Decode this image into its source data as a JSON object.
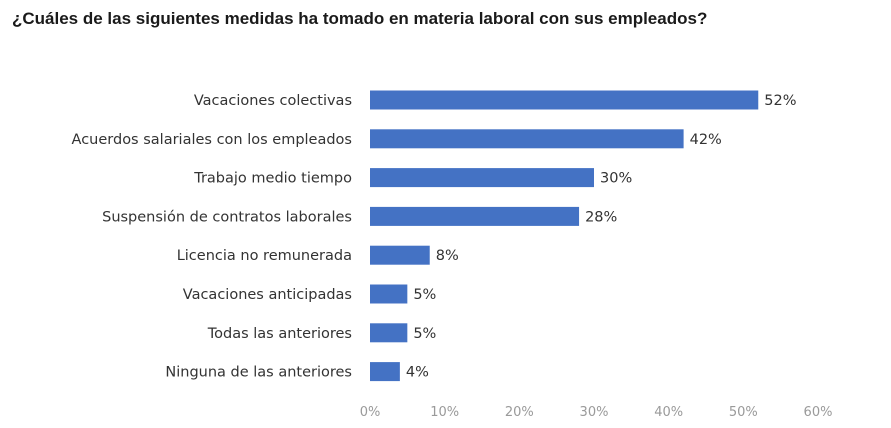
{
  "title": "¿Cuáles de las siguientes medidas ha tomado en materia laboral con sus empleados?",
  "colors": {
    "bar": "#4472c4",
    "text": "#333333",
    "tick": "#9a9a9a"
  },
  "chart_data": {
    "type": "bar",
    "orientation": "horizontal",
    "title": "¿Cuáles de las siguientes medidas ha tomado en materia laboral con sus empleados?",
    "categories": [
      "Vacaciones colectivas",
      "Acuerdos salariales con los empleados",
      "Trabajo medio tiempo",
      "Suspensión de contratos laborales",
      "Licencia no remunerada",
      "Vacaciones anticipadas",
      "Todas las anteriores",
      "Ninguna de las anteriores"
    ],
    "values": [
      52,
      42,
      30,
      28,
      8,
      5,
      5,
      4
    ],
    "value_labels": [
      "52%",
      "42%",
      "30%",
      "28%",
      "8%",
      "5%",
      "5%",
      "4%"
    ],
    "xlim": [
      0,
      60
    ],
    "xticks": [
      "0%",
      "10%",
      "20%",
      "30%",
      "40%",
      "50%",
      "60%"
    ],
    "grid": false,
    "legend": "none"
  }
}
